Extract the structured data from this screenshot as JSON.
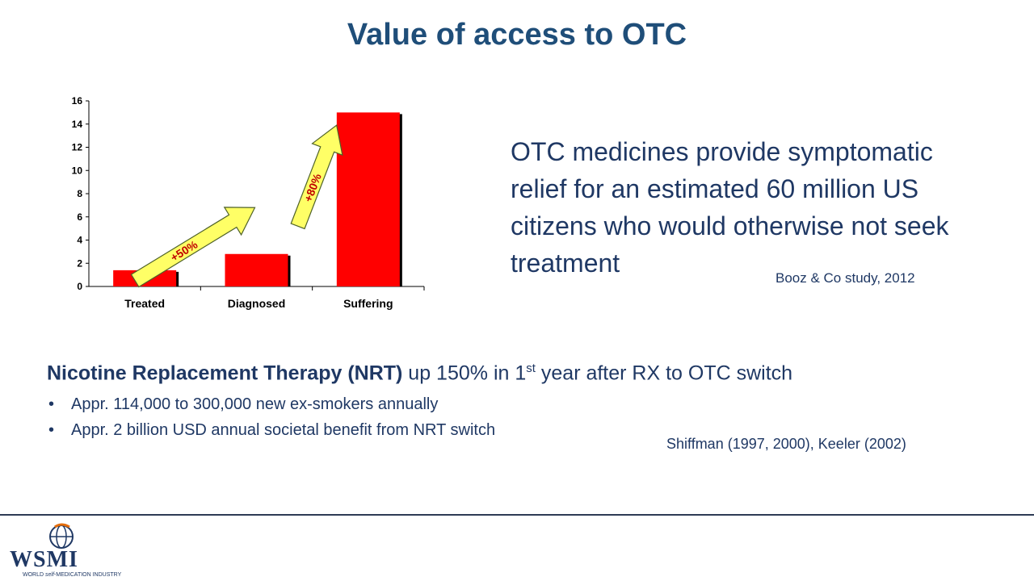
{
  "slide": {
    "title": "Value of access to OTC",
    "statement": "OTC medicines provide symptomatic relief for an estimated 60 million US citizens who would otherwise not seek treatment",
    "statement_source": "Booz & Co study, 2012",
    "nrt": {
      "heading_bold": "Nicotine Replacement Therapy (NRT)",
      "heading_rest_pre": " up 150% in 1",
      "heading_sup": "st",
      "heading_rest_post": " year after RX to OTC switch",
      "bullets": [
        "Appr. 114,000 to 300,000 new ex-smokers annually",
        "Appr. 2 billion USD annual societal benefit from NRT switch"
      ],
      "bullet_glyph": "•"
    },
    "nrt_source": "Shiffman (1997, 2000), Keeler (2002)"
  },
  "logo": {
    "name": "WSMI",
    "tagline_pre": "WORLD ",
    "tagline_self": "self",
    "tagline_post": "-MEDICATION INDUSTRY",
    "icon": "globe-icon"
  },
  "chart_data": {
    "type": "bar",
    "categories": [
      "Treated",
      "Diagnosed",
      "Suffering"
    ],
    "values": [
      1.4,
      2.8,
      15
    ],
    "ylim": [
      0,
      16
    ],
    "yticks": [
      0,
      2,
      4,
      6,
      8,
      10,
      12,
      14,
      16
    ],
    "grid": false,
    "bar_color": "#FF0000",
    "annotations": [
      {
        "text": "+50%",
        "from": "Treated",
        "to": "Diagnosed",
        "color": "#FFFF66"
      },
      {
        "text": "+80%",
        "from": "Diagnosed",
        "to": "Suffering",
        "color": "#FFFF66"
      }
    ]
  }
}
